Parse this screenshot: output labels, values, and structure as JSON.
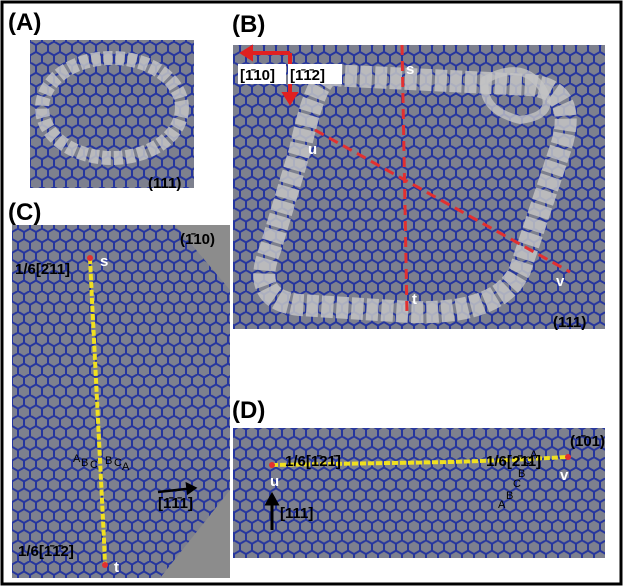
{
  "panels": [
    {
      "label": "(A)",
      "plane": "(111)"
    },
    {
      "label": "(B)",
      "plane": "(111)",
      "directions": [
        "[1̄10]",
        "[1̄1̄2]"
      ],
      "points": [
        "s",
        "u",
        "t",
        "v"
      ]
    },
    {
      "label": "(C)",
      "plane": "(1̄10)",
      "burgers": [
        "1/6[2̄11]",
        "1/6[1̄1̄2]"
      ],
      "points": [
        "s",
        "t"
      ],
      "stacking": [
        "A",
        "B",
        "C",
        "B",
        "C",
        "A"
      ],
      "direction": "[1̄1̄1]"
    },
    {
      "label": "(D)",
      "plane": "(1̄01)",
      "burgers": [
        "1/6[1̄21̄]",
        "1/6[2̄11]"
      ],
      "points": [
        "u",
        "v"
      ],
      "stacking": [
        "A",
        "B",
        "C",
        "B",
        "C",
        "A"
      ],
      "direction": "[111]"
    }
  ]
}
